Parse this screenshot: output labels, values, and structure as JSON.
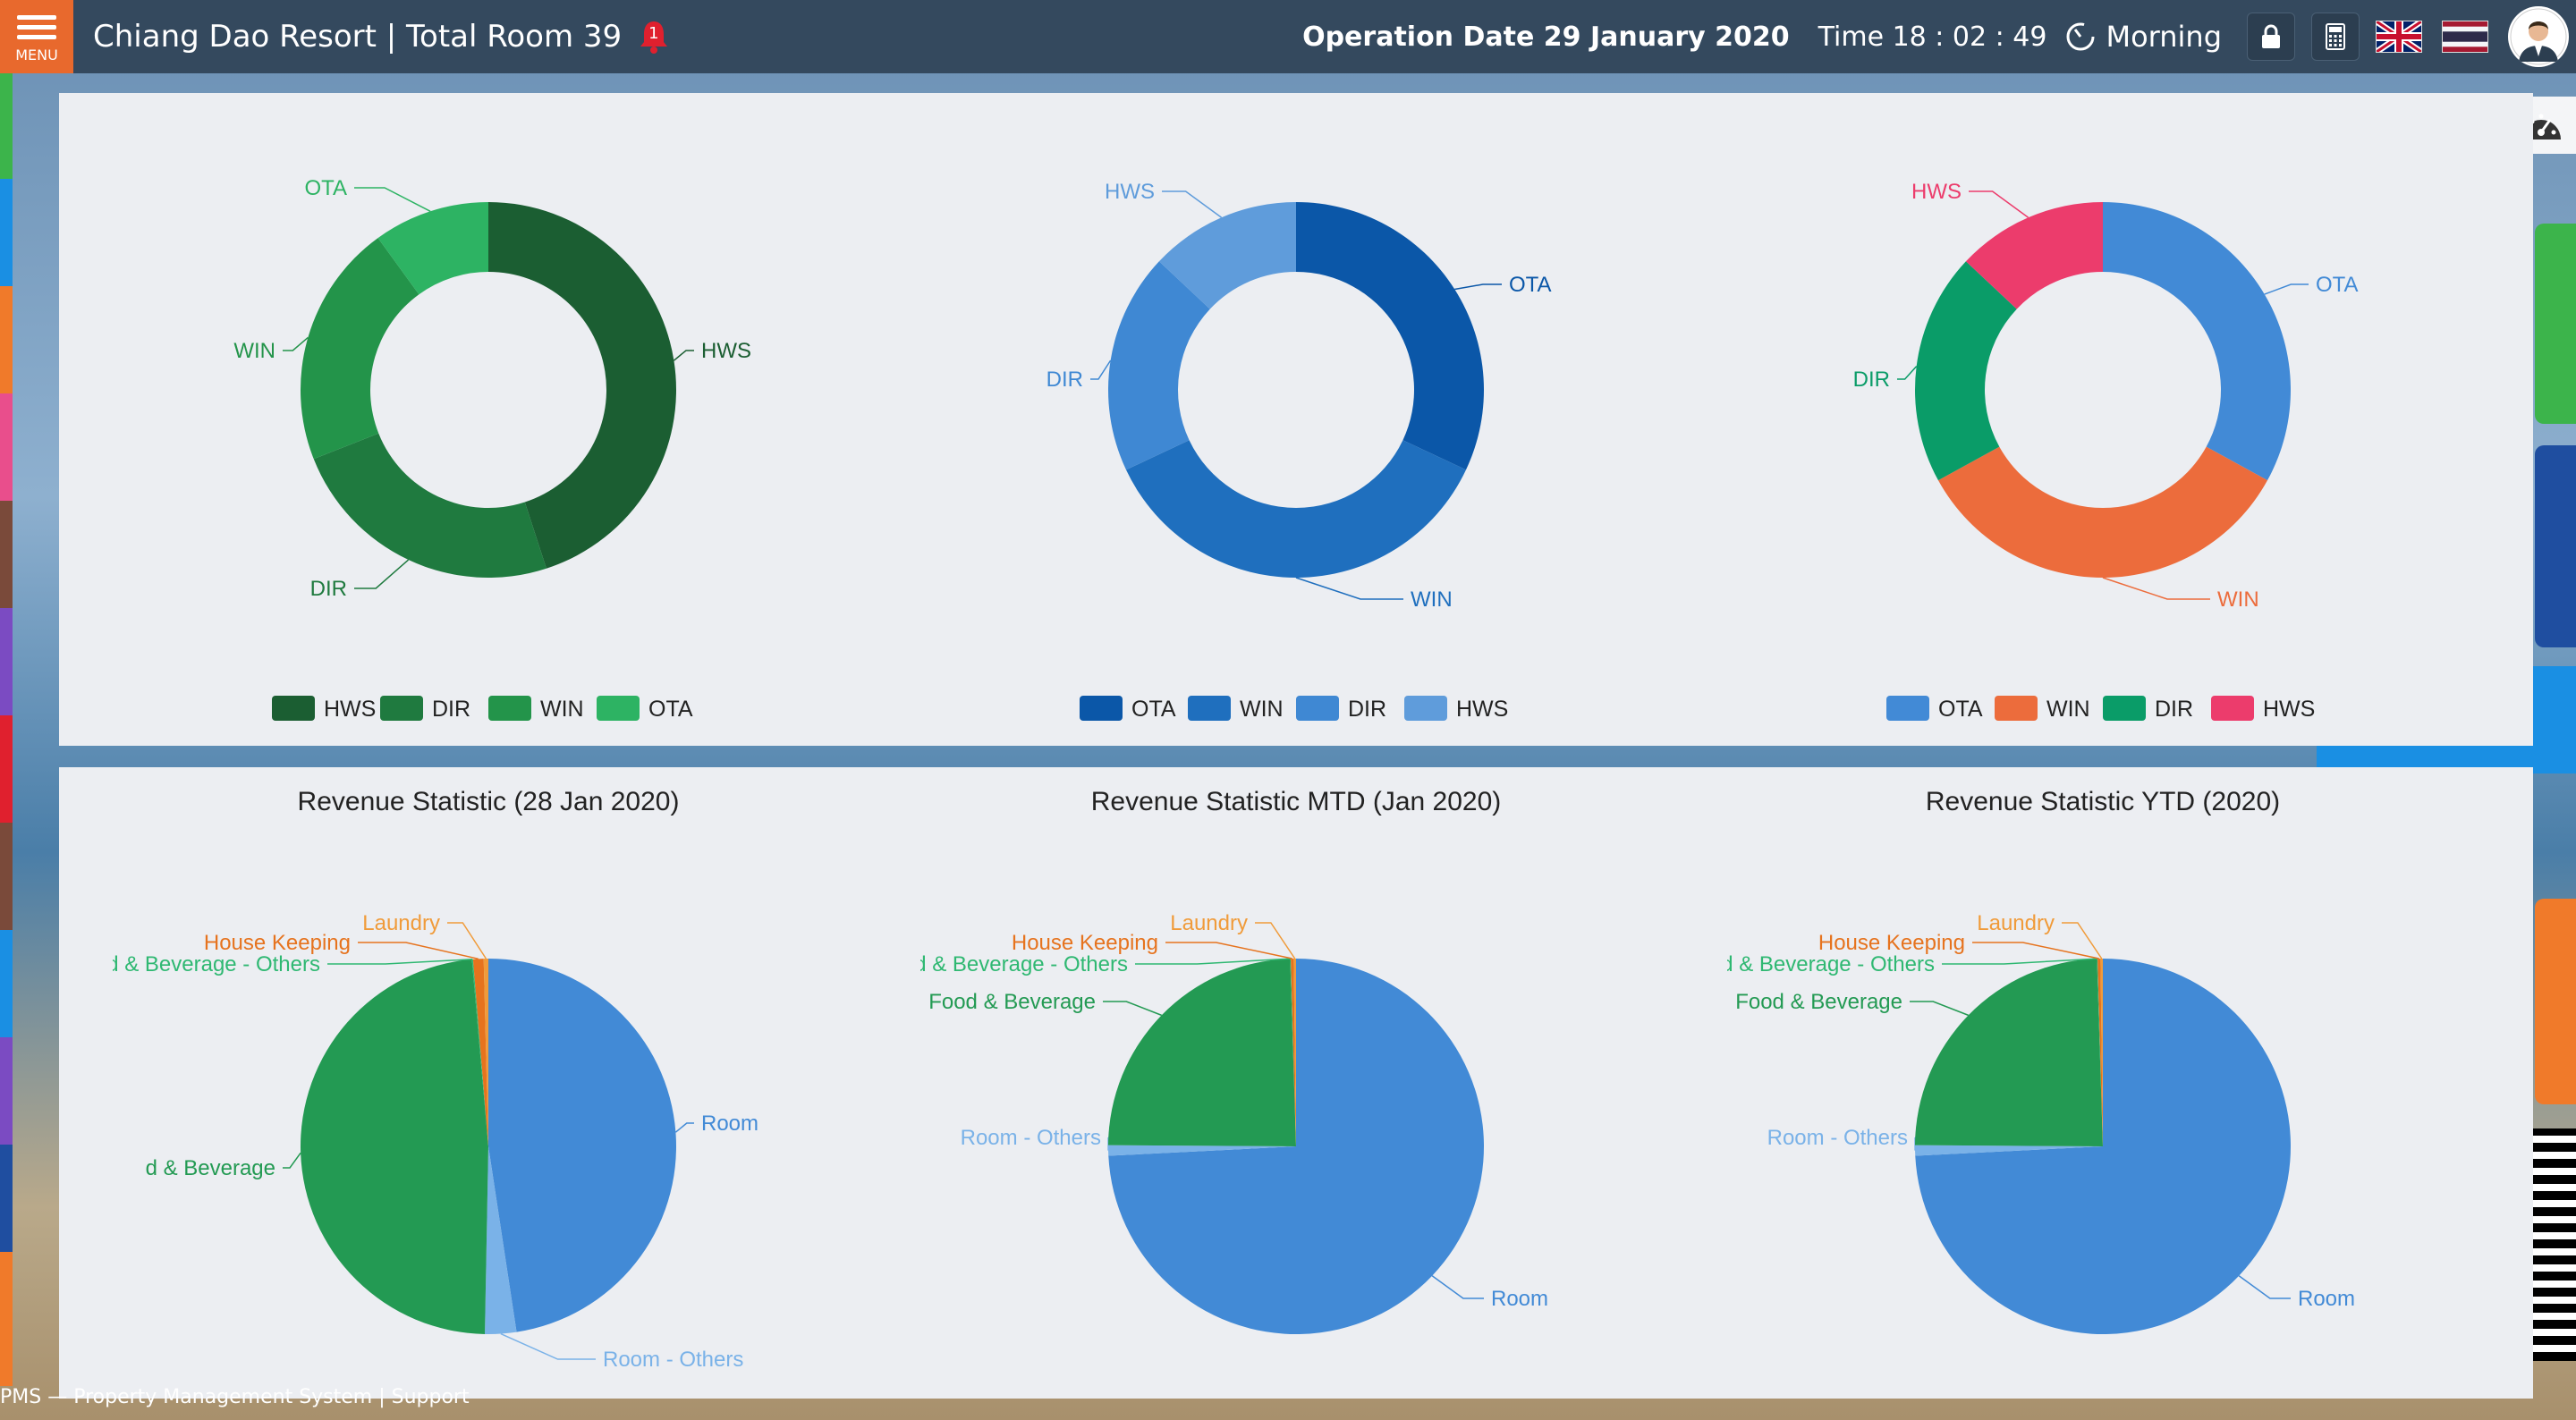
{
  "header": {
    "menu_label": "MENU",
    "title": "Chiang Dao Resort | Total Room 39",
    "bell_count": "1",
    "operation_date": "Operation Date 29 January 2020",
    "time": "Time 18 : 02 : 49",
    "session": "Morning",
    "icons": [
      "menu-icon",
      "bell-icon",
      "clock-icon",
      "lock-icon",
      "calculator-icon",
      "uk-flag-icon",
      "thai-flag-icon",
      "user-avatar-icon",
      "dashboard-gauge-icon"
    ]
  },
  "footer": {
    "text": "PMS — Property Management System | Support"
  },
  "chart_data": [
    {
      "type": "pie",
      "donut": true,
      "categories": [
        "HWS",
        "DIR",
        "WIN",
        "OTA"
      ],
      "values": [
        45,
        24,
        21,
        10
      ],
      "colors": [
        "#1b5e32",
        "#1f7a3f",
        "#23944a",
        "#2db363"
      ],
      "legend": "bottom"
    },
    {
      "type": "pie",
      "donut": true,
      "categories": [
        "OTA",
        "WIN",
        "DIR",
        "HWS"
      ],
      "values": [
        32,
        36,
        19,
        13
      ],
      "colors": [
        "#0b57a8",
        "#1f6fbe",
        "#3f88d3",
        "#5f9cdb"
      ],
      "legend": "bottom"
    },
    {
      "type": "pie",
      "donut": true,
      "categories": [
        "OTA",
        "WIN",
        "DIR",
        "HWS"
      ],
      "values": [
        33,
        34,
        20,
        13
      ],
      "colors": [
        "#428ad6",
        "#ec6c3c",
        "#0a9c68",
        "#ec3c6c"
      ],
      "legend": "bottom"
    },
    {
      "type": "pie",
      "title": "Revenue Statistic (28 Jan 2020)",
      "categories": [
        "Room",
        "Room - Others",
        "Food & Beverage",
        "Food & Beverage - Others",
        "House Keeping",
        "Laundry"
      ],
      "values": [
        47.6,
        2.7,
        48.3,
        0.1,
        0.9,
        0.4
      ],
      "display_labels": [
        "Room",
        "Room - Others",
        "d & Beverage",
        "od & Beverage - Others",
        "House Keeping",
        "Laundry"
      ],
      "colors": [
        "#428ad6",
        "#7ab2e8",
        "#239a53",
        "#2fb872",
        "#e6731e",
        "#f09b3a"
      ]
    },
    {
      "type": "pie",
      "title": "Revenue Statistic MTD (Jan 2020)",
      "categories": [
        "Room",
        "Room - Others",
        "Food & Beverage",
        "Food & Beverage - Others",
        "House Keeping",
        "Laundry"
      ],
      "values": [
        74.2,
        0.9,
        24.4,
        0.05,
        0.25,
        0.2
      ],
      "display_labels": [
        "Room",
        "Room - Others",
        "Food & Beverage",
        "od & Beverage - Others",
        "House Keeping",
        "Laundry"
      ],
      "colors": [
        "#428ad6",
        "#7ab2e8",
        "#239a53",
        "#2fb872",
        "#e6731e",
        "#f09b3a"
      ]
    },
    {
      "type": "pie",
      "title": "Revenue Statistic YTD (2020)",
      "categories": [
        "Room",
        "Room - Others",
        "Food & Beverage",
        "Food & Beverage - Others",
        "House Keeping",
        "Laundry"
      ],
      "values": [
        74.2,
        0.9,
        24.4,
        0.05,
        0.25,
        0.2
      ],
      "display_labels": [
        "Room",
        "Room - Others",
        "Food & Beverage",
        "od & Beverage - Others",
        "House Keeping",
        "Laundry"
      ],
      "colors": [
        "#428ad6",
        "#7ab2e8",
        "#239a53",
        "#2fb872",
        "#e6731e",
        "#f09b3a"
      ]
    }
  ]
}
